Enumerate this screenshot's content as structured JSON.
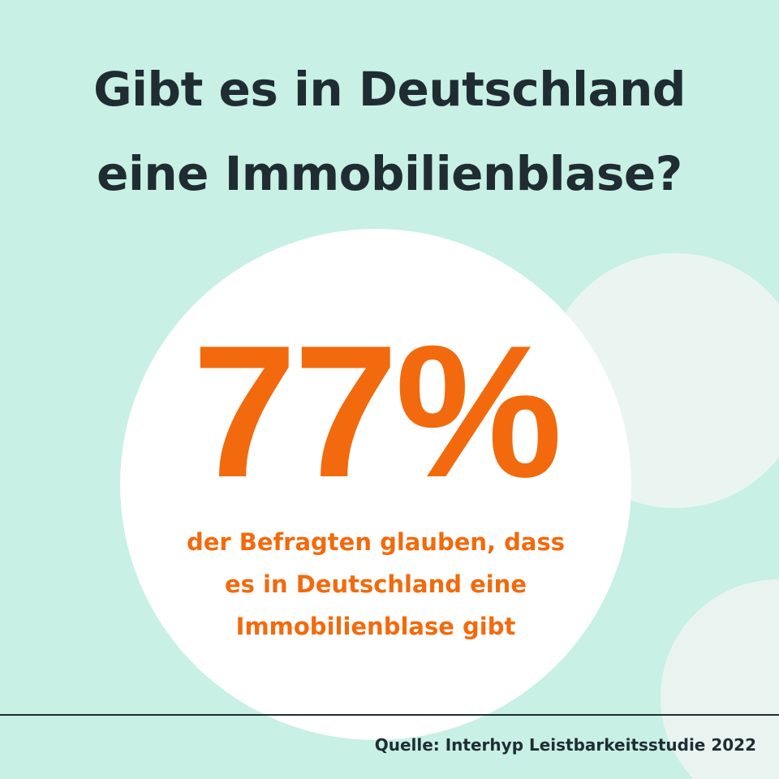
{
  "headline": {
    "line1": "Gibt es in Deutschland",
    "line2": "eine Immobilienblase?"
  },
  "stat": {
    "value": "77%",
    "caption_line1": "der Befragten glauben, dass",
    "caption_line2": "es in Deutschland eine",
    "caption_line3": "Immobilienblase gibt"
  },
  "footer": {
    "source": "Quelle: Interhyp Leistbarkeitsstudie 2022"
  },
  "colors": {
    "background": "#c8f0e5",
    "accent": "#f26a0d",
    "text": "#1f2d33",
    "circle": "#ffffff",
    "decorative_circle": "#eaf5f1"
  }
}
